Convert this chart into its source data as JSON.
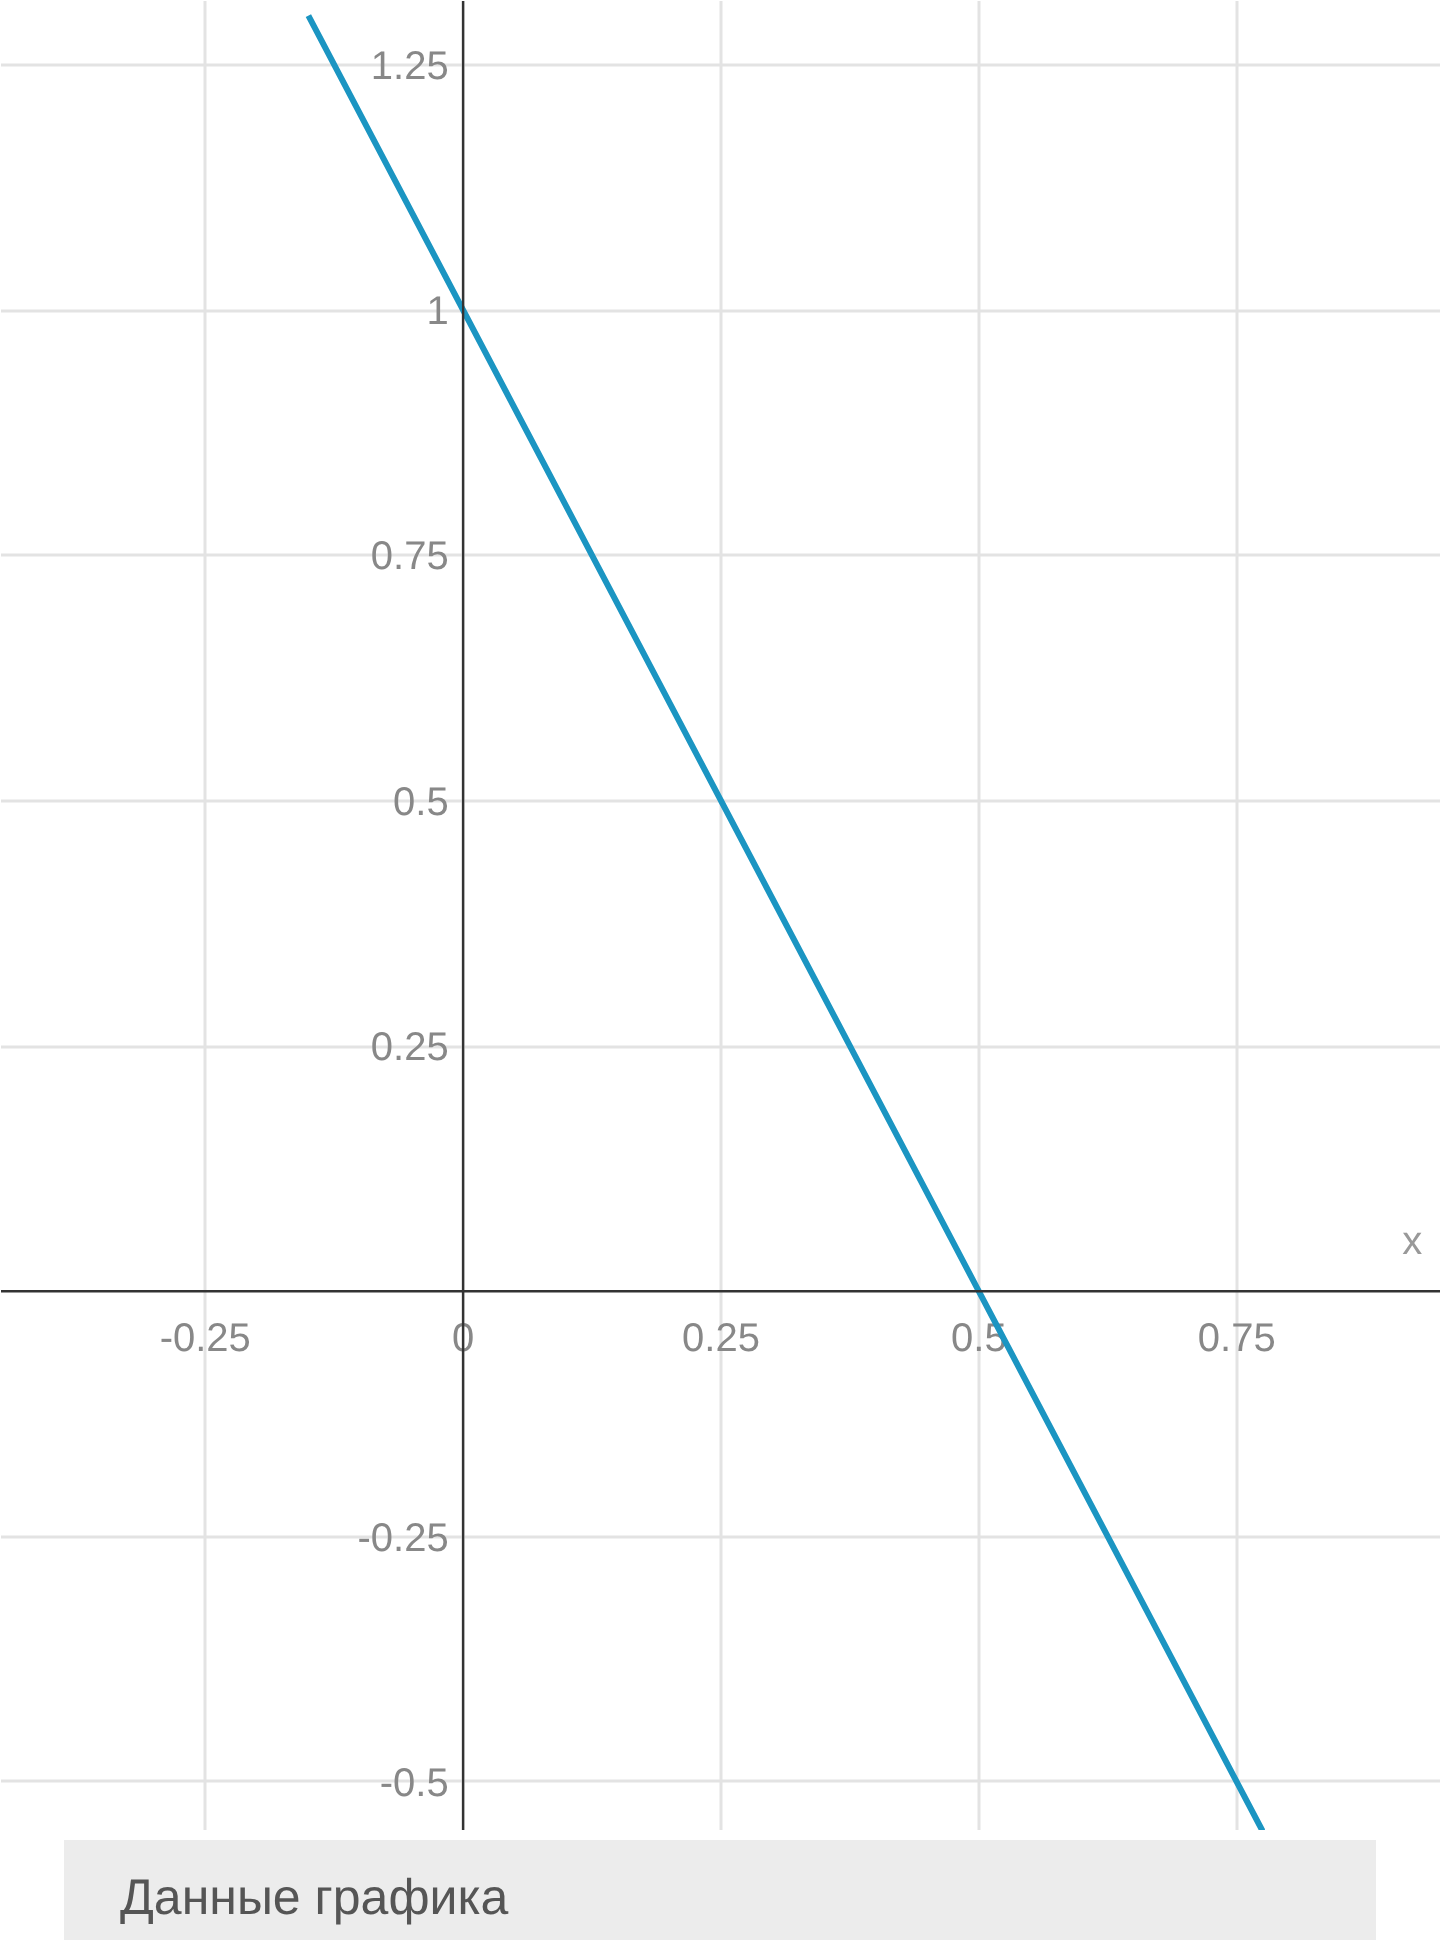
{
  "chart_data": {
    "type": "line",
    "xlabel": "x",
    "x": [
      -0.15,
      0.5,
      0.775
    ],
    "series": [
      {
        "color": "#1b95c2",
        "values": [
          1.3,
          0,
          -0.55
        ]
      }
    ],
    "xlim": [
      -0.448,
      0.948
    ],
    "ylim": [
      -0.55,
      1.315
    ],
    "xticks": [
      -0.25,
      0,
      0.25,
      0.5,
      0.75
    ],
    "yticks": [
      -0.5,
      -0.25,
      0.25,
      0.5,
      0.75,
      1,
      1.25
    ],
    "grid": true,
    "line_style": "solid",
    "marker": "none",
    "annotations": [
      "Данные графика"
    ]
  }
}
